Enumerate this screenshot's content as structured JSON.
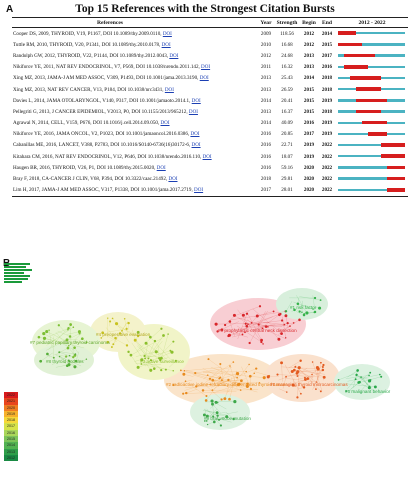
{
  "panel_a": {
    "label": "A",
    "title": "Top 15 References with the Strongest Citation Bursts",
    "headers": {
      "references": "References",
      "year": "Year",
      "strength": "Strength",
      "begin": "Begin",
      "end": "End",
      "range": "2012 - 2022"
    },
    "timeline": {
      "start": 2012,
      "end": 2022
    },
    "colors": {
      "track": "#4bb3c2",
      "burst": "#d61e1e"
    },
    "rows": [
      {
        "ref": "Cooper DS, 2009, THYROID, V19, P1167, DOI 10.1089/thy.2009.0110,",
        "doi": "DOI",
        "year": "2009",
        "strength": "118.56",
        "begin": "2012",
        "end": "2014",
        "b": 2012,
        "e": 2014
      },
      {
        "ref": "Tuttle RM, 2010, THYROID, V20, P1341, DOI 10.1089/thy.2010.0178,",
        "doi": "DOI",
        "year": "2010",
        "strength": "16.68",
        "begin": "2012",
        "end": "2015",
        "b": 2012,
        "e": 2015
      },
      {
        "ref": "Randolph GW, 2012, THYROID, V22, P1144, DOI 10.1089/thy.2012.0043,",
        "doi": "DOI",
        "year": "2012",
        "strength": "24.68",
        "begin": "2013",
        "end": "2017",
        "b": 2013,
        "e": 2017
      },
      {
        "ref": "Nikiforov YE, 2011, NAT REV ENDOCRINOL, V7, P569, DOI 10.1038/nrendo.2011.142,",
        "doi": "DOI",
        "year": "2011",
        "strength": "16.32",
        "begin": "2013",
        "end": "2016",
        "b": 2013,
        "e": 2016
      },
      {
        "ref": "Xing MZ, 2013, JAMA-J AM MED ASSOC, V309, P1493, DOI 10.1001/jama.2013.3190,",
        "doi": "DOI",
        "year": "2013",
        "strength": "25.43",
        "begin": "2014",
        "end": "2018",
        "b": 2014,
        "e": 2018
      },
      {
        "ref": "Xing MZ, 2013, NAT REV CANCER, V13, P184, DOI 10.1038/nrc3431,",
        "doi": "DOI",
        "year": "2013",
        "strength": "26.59",
        "begin": "2015",
        "end": "2018",
        "b": 2015,
        "e": 2018
      },
      {
        "ref": "Davies L, 2014, JAMA OTOLARYNGOL, V140, P317, DOI 10.1001/jamaoto.2014.1,",
        "doi": "DOI",
        "year": "2014",
        "strength": "20.41",
        "begin": "2015",
        "end": "2019",
        "b": 2015,
        "e": 2019
      },
      {
        "ref": "Pellegriti G, 2013, J CANCER EPIDEMIOL, V2013, P0, DOI 10.1155/2013/965212,",
        "doi": "DOI",
        "year": "2013",
        "strength": "16.37",
        "begin": "2015",
        "end": "2018",
        "b": 2015,
        "e": 2018
      },
      {
        "ref": "Agrawal N, 2014, CELL, V159, P676, DOI 10.1016/j.cell.2014.09.050,",
        "doi": "DOI",
        "year": "2014",
        "strength": "40.09",
        "begin": "2016",
        "end": "2019",
        "b": 2016,
        "e": 2019
      },
      {
        "ref": "Nikiforov YE, 2016, JAMA ONCOL, V2, P1023, DOI 10.1001/jamaoncol.2016.0386,",
        "doi": "DOI",
        "year": "2016",
        "strength": "20.85",
        "begin": "2017",
        "end": "2019",
        "b": 2017,
        "e": 2019
      },
      {
        "ref": "Cabanillas ME, 2016, LANCET, V388, P2783, DOI 10.1016/S0140-6736(16)30172-6,",
        "doi": "DOI",
        "year": "2016",
        "strength": "22.71",
        "begin": "2019",
        "end": "2022",
        "b": 2019,
        "e": 2022
      },
      {
        "ref": "Kitahara CM, 2016, NAT REV ENDOCRINOL, V12, P646, DOI 10.1038/nrendo.2016.110,",
        "doi": "DOI",
        "year": "2016",
        "strength": "18.07",
        "begin": "2019",
        "end": "2022",
        "b": 2019,
        "e": 2022
      },
      {
        "ref": "Haugen BR, 2016, THYROID, V26, P1, DOI 10.1089/thy.2015.0020,",
        "doi": "DOI",
        "year": "2016",
        "strength": "59.16",
        "begin": "2020",
        "end": "2022",
        "b": 2020,
        "e": 2022
      },
      {
        "ref": "Bray F, 2018, CA-CANCER J CLIN, V68, P394, DOI 10.3322/caac.21492,",
        "doi": "DOI",
        "year": "2018",
        "strength": "29.81",
        "begin": "2020",
        "end": "2022",
        "b": 2020,
        "e": 2022
      },
      {
        "ref": "Lim H, 2017, JAMA-J AM MED ASSOC, V317, P1338, DOI 10.1001/jama.2017.2719,",
        "doi": "DOI",
        "year": "2017",
        "strength": "28.01",
        "begin": "2020",
        "end": "2022",
        "b": 2020,
        "e": 2022
      }
    ]
  },
  "panel_b": {
    "label": "B",
    "clusters": [
      {
        "name": "#0 prophylactic central neck dissection",
        "color": "#d8262a"
      },
      {
        "name": "#1 risk factor",
        "color": "#35b34a"
      },
      {
        "name": "#2 radioactive iodine-refractory differentiated thyroid cancer",
        "color": "#e88a1d"
      },
      {
        "name": "#3 active surveillance",
        "color": "#8bbf2c"
      },
      {
        "name": "#4 preoperative evaluation",
        "color": "#c8c21e"
      },
      {
        "name": "#5 managing thyroid microcarcinomas",
        "color": "#e35a1f"
      },
      {
        "name": "#6 malignant behavior",
        "color": "#2aa84a"
      },
      {
        "name": "#7 pediatric papillary thyroid carcinoma",
        "color": "#7cbf33"
      },
      {
        "name": "#8 thyroid nodules",
        "color": "#56ae3a"
      },
      {
        "name": "#9 braf v600e mutation",
        "color": "#3ea84a"
      }
    ],
    "scale_labels": [
      "2022",
      "2021",
      "2020",
      "2019",
      "2018",
      "2017",
      "2016",
      "2015",
      "2014",
      "2013",
      "2012"
    ],
    "scale_colors": [
      "#d7191c",
      "#e8451e",
      "#f07c22",
      "#f6b12c",
      "#f6d83a",
      "#d6e24a",
      "#a9d65a",
      "#7cc45a",
      "#52b252",
      "#2f9e4a",
      "#1a8a44"
    ]
  }
}
